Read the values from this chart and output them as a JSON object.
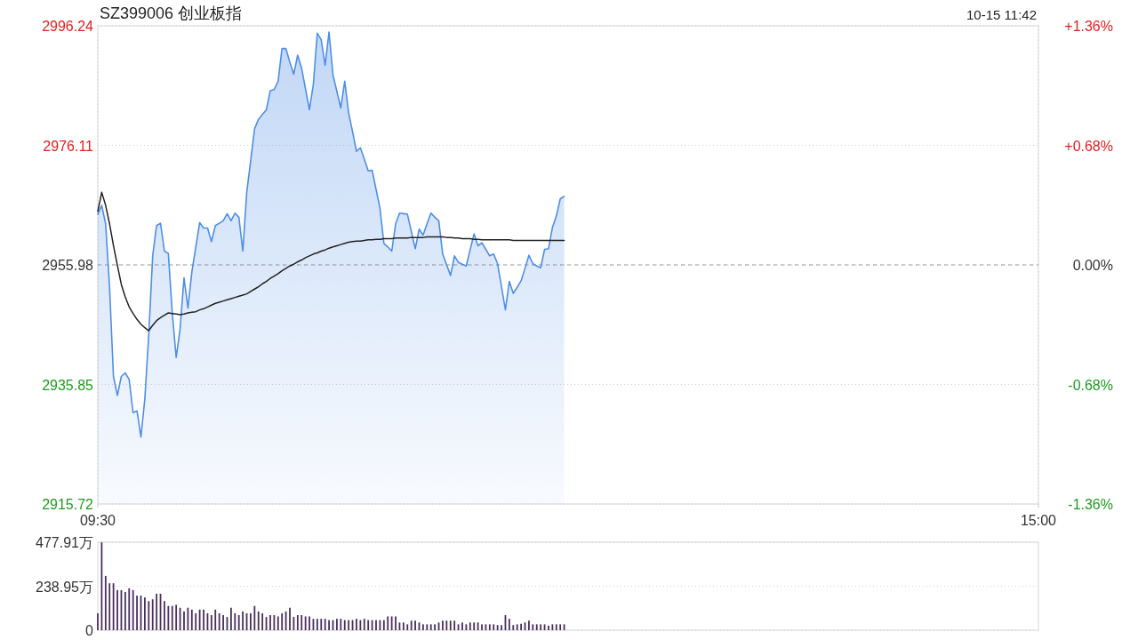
{
  "chart_data": [
    {
      "type": "area",
      "title": "SZ399006 创业板指",
      "subtitle": "10-15 11:42",
      "categories": [
        "09:30",
        null,
        null,
        null,
        null,
        null,
        null,
        null,
        null,
        null,
        null,
        null,
        null,
        null,
        null,
        null,
        null,
        null,
        null,
        null,
        null,
        null,
        null,
        null,
        null,
        null,
        null,
        null,
        null,
        null,
        null,
        null,
        null,
        null,
        null,
        null,
        null,
        null,
        null,
        null,
        null,
        null,
        null,
        null,
        null,
        null,
        null,
        null,
        null,
        null,
        null,
        null,
        null,
        null,
        null,
        null,
        null,
        null,
        null,
        null,
        null,
        null,
        null,
        null,
        null,
        null,
        null,
        null,
        null,
        null,
        null,
        null,
        null,
        null,
        null,
        null,
        null,
        null,
        null,
        null,
        null,
        null,
        null,
        null,
        null,
        null,
        null,
        null,
        null,
        null,
        null,
        null,
        null,
        null,
        null,
        null,
        null,
        null,
        null,
        null,
        null,
        null,
        null,
        null,
        null,
        null,
        null,
        null,
        null,
        null,
        null,
        null,
        null,
        null,
        null,
        null,
        null,
        null,
        null,
        null,
        null,
        null,
        null,
        null,
        null,
        null,
        null,
        null,
        null,
        null,
        null,
        null,
        null,
        null,
        null,
        null,
        null,
        null,
        null,
        null,
        null,
        null,
        null,
        null,
        null,
        null,
        null,
        null,
        null,
        null,
        null,
        null,
        null,
        null,
        null,
        null,
        null,
        null,
        null,
        null,
        null,
        null,
        null,
        null,
        null,
        null,
        null,
        null,
        null,
        null,
        null,
        null,
        null,
        null,
        null,
        null,
        null,
        null,
        null,
        null,
        null,
        null,
        null,
        null,
        null,
        null,
        null,
        null,
        null,
        null,
        null,
        null,
        null,
        null,
        null,
        null,
        null,
        null,
        null,
        null,
        null,
        null,
        null,
        null,
        null,
        null,
        null,
        null,
        null,
        null,
        null,
        null,
        null,
        null,
        null,
        null,
        null,
        null,
        null,
        null,
        null,
        null,
        null,
        null,
        null,
        null,
        null,
        null,
        null,
        null,
        null,
        null,
        null,
        null,
        null,
        null,
        null,
        null,
        null,
        null,
        "15:00"
      ],
      "ylim": [
        2915.72,
        2996.24
      ],
      "yticks": [
        2915.72,
        2935.85,
        2955.98,
        2976.11,
        2996.24
      ],
      "y2lim": [
        -1.36,
        1.36
      ],
      "y2ticks": [
        {
          "value": -1.36,
          "label": "-1.36%"
        },
        {
          "value": -0.68,
          "label": "-0.68%"
        },
        {
          "value": 0,
          "label": "0.00%"
        },
        {
          "value": 0.68,
          "label": "+0.68%"
        },
        {
          "value": 1.36,
          "label": "+1.36%"
        }
      ],
      "grid": true,
      "ref_lines": [
        {
          "axis": "y",
          "value": 2955.98,
          "color": "#999999",
          "line_style": "dashed"
        }
      ],
      "series": [
        {
          "type": "area",
          "color": "#4f8ee6",
          "values": [
            2964.5,
            2966.0,
            2962.9,
            2952.2,
            2937.2,
            2934.0,
            2937.2,
            2937.8,
            2936.7,
            2931.1,
            2931.4,
            2927.0,
            2933.4,
            2944.2,
            2957.5,
            2962.6,
            2963.0,
            2958.3,
            2957.9,
            2947.9,
            2940.4,
            2945.2,
            2953.8,
            2948.7,
            2954.8,
            2959.0,
            2963.1,
            2962.2,
            2962.2,
            2959.9,
            2962.6,
            2963.0,
            2963.4,
            2964.6,
            2963.4,
            2964.7,
            2964.0,
            2958.3,
            2968.2,
            2973.5,
            2978.9,
            2980.5,
            2981.3,
            2982.1,
            2985.3,
            2985.5,
            2986.9,
            2992.4,
            2992.4,
            2990.1,
            2988.1,
            2991.3,
            2989.1,
            2985.6,
            2982.1,
            2986.4,
            2995.0,
            2993.9,
            2989.6,
            2995.2,
            2988.0,
            2985.2,
            2982.4,
            2986.9,
            2981.6,
            2978.4,
            2975.1,
            2975.7,
            2973.8,
            2971.8,
            2971.9,
            2968.7,
            2965.5,
            2959.6,
            2959.0,
            2958.3,
            2962.9,
            2964.7,
            2964.6,
            2964.5,
            2961.6,
            2958.7,
            2962.0,
            2961.0,
            2962.9,
            2964.7,
            2964.0,
            2963.4,
            2957.8,
            2956.0,
            2954.2,
            2957.5,
            2956.4,
            2956.1,
            2955.8,
            2958.5,
            2961.2,
            2959.2,
            2959.7,
            2958.6,
            2957.5,
            2957.8,
            2956.2,
            2952.3,
            2948.4,
            2953.2,
            2951.2,
            2952.2,
            2953.3,
            2955.4,
            2957.6,
            2956.2,
            2955.8,
            2955.5,
            2958.6,
            2958.7,
            2962.3,
            2964.2,
            2967.1,
            2967.5,
            null,
            null,
            null,
            null,
            null,
            null,
            null,
            null,
            null,
            null,
            null,
            null,
            null,
            null,
            null,
            null,
            null,
            null,
            null,
            null,
            null,
            null,
            null,
            null,
            null,
            null,
            null,
            null,
            null,
            null,
            null,
            null,
            null,
            null,
            null,
            null,
            null,
            null,
            null,
            null,
            null,
            null,
            null,
            null,
            null,
            null,
            null,
            null,
            null,
            null,
            null,
            null,
            null,
            null,
            null,
            null,
            null,
            null,
            null,
            null,
            null,
            null,
            null,
            null,
            null,
            null,
            null,
            null,
            null,
            null,
            null,
            null,
            null,
            null,
            null,
            null,
            null,
            null,
            null,
            null,
            null,
            null,
            null,
            null,
            null,
            null,
            null,
            null,
            null,
            null,
            null,
            null,
            null,
            null,
            null,
            null,
            null,
            null,
            null,
            null,
            null,
            null,
            null,
            null,
            null,
            null,
            null,
            null,
            null,
            null,
            null,
            null,
            null,
            null,
            null,
            null,
            null,
            null,
            null,
            null,
            null
          ]
        },
        {
          "type": "line",
          "color": "#222222",
          "values": [
            2965.0,
            2968.2,
            2966.0,
            2962.9,
            2959.2,
            2955.9,
            2952.7,
            2950.6,
            2948.9,
            2947.8,
            2946.8,
            2946.0,
            2945.4,
            2944.9,
            2945.8,
            2946.6,
            2947.1,
            2947.5,
            2947.9,
            2947.8,
            2947.7,
            2947.6,
            2947.7,
            2947.9,
            2948.0,
            2948.1,
            2948.4,
            2948.6,
            2948.9,
            2949.2,
            2949.5,
            2949.7,
            2949.9,
            2950.1,
            2950.3,
            2950.5,
            2950.7,
            2950.9,
            2951.1,
            2951.5,
            2951.9,
            2952.3,
            2952.8,
            2953.2,
            2953.7,
            2954.1,
            2954.5,
            2955.0,
            2955.4,
            2955.8,
            2956.1,
            2956.5,
            2956.8,
            2957.2,
            2957.5,
            2957.8,
            2958.0,
            2958.3,
            2958.5,
            2958.8,
            2959.0,
            2959.2,
            2959.4,
            2959.6,
            2959.8,
            2959.9,
            2960.0,
            2960.0,
            2960.1,
            2960.2,
            2960.2,
            2960.3,
            2960.3,
            2960.4,
            2960.4,
            2960.4,
            2960.5,
            2960.5,
            2960.5,
            2960.5,
            2960.6,
            2960.6,
            2960.6,
            2960.6,
            2960.7,
            2960.7,
            2960.7,
            2960.7,
            2960.7,
            2960.6,
            2960.6,
            2960.5,
            2960.5,
            2960.4,
            2960.4,
            2960.4,
            2960.3,
            2960.3,
            2960.2,
            2960.2,
            2960.2,
            2960.2,
            2960.2,
            2960.2,
            2960.2,
            2960.2,
            2960.1,
            2960.1,
            2960.1,
            2960.1,
            2960.1,
            2960.1,
            2960.1,
            2960.1,
            2960.1,
            2960.1,
            2960.1,
            2960.1,
            2960.1,
            2960.1,
            null,
            null,
            null,
            null,
            null,
            null,
            null,
            null,
            null,
            null,
            null,
            null,
            null,
            null,
            null,
            null,
            null,
            null,
            null,
            null,
            null,
            null,
            null,
            null,
            null,
            null,
            null,
            null,
            null,
            null,
            null,
            null,
            null,
            null,
            null,
            null,
            null,
            null,
            null,
            null,
            null,
            null,
            null,
            null,
            null,
            null,
            null,
            null,
            null,
            null,
            null,
            null,
            null,
            null,
            null,
            null,
            null,
            null,
            null,
            null,
            null,
            null,
            null,
            null,
            null,
            null,
            null,
            null,
            null,
            null,
            null,
            null,
            null,
            null,
            null,
            null,
            null,
            null,
            null,
            null,
            null,
            null,
            null,
            null,
            null,
            null,
            null,
            null,
            null,
            null,
            null,
            null,
            null,
            null,
            null,
            null,
            null,
            null,
            null,
            null,
            null,
            null,
            null,
            null,
            null,
            null,
            null,
            null,
            null,
            null,
            null,
            null,
            null,
            null,
            null,
            null,
            null,
            null,
            null,
            null,
            null
          ]
        }
      ]
    },
    {
      "type": "bar",
      "color": "#4a2f5e",
      "tick_labels": "y",
      "grid": "y",
      "categories": [
        null,
        null,
        null,
        null,
        null,
        null,
        null,
        null,
        null,
        null,
        null,
        null,
        null,
        null,
        null,
        null,
        null,
        null,
        null,
        null,
        null,
        null,
        null,
        null,
        null,
        null,
        null,
        null,
        null,
        null,
        null,
        null,
        null,
        null,
        null,
        null,
        null,
        null,
        null,
        null,
        null,
        null,
        null,
        null,
        null,
        null,
        null,
        null,
        null,
        null,
        null,
        null,
        null,
        null,
        null,
        null,
        null,
        null,
        null,
        null,
        null,
        null,
        null,
        null,
        null,
        null,
        null,
        null,
        null,
        null,
        null,
        null,
        null,
        null,
        null,
        null,
        null,
        null,
        null,
        null,
        null,
        null,
        null,
        null,
        null,
        null,
        null,
        null,
        null,
        null,
        null,
        null,
        null,
        null,
        null,
        null,
        null,
        null,
        null,
        null,
        null,
        null,
        null,
        null,
        null,
        null,
        null,
        null,
        null,
        null,
        null,
        null,
        null,
        null,
        null,
        null,
        null,
        null,
        null,
        null,
        null,
        null,
        null,
        null,
        null,
        null,
        null,
        null,
        null,
        null,
        null,
        null,
        null,
        null,
        null,
        null,
        null,
        null,
        null,
        null,
        null,
        null,
        null,
        null,
        null,
        null,
        null,
        null,
        null,
        null,
        null,
        null,
        null,
        null,
        null,
        null,
        null,
        null,
        null,
        null,
        null,
        null,
        null,
        null,
        null,
        null,
        null,
        null,
        null,
        null,
        null,
        null,
        null,
        null,
        null,
        null,
        null,
        null,
        null,
        null,
        null,
        null,
        null,
        null,
        null,
        null,
        null,
        null,
        null,
        null,
        null,
        null,
        null,
        null,
        null,
        null,
        null,
        null,
        null,
        null,
        null,
        null,
        null,
        null,
        null,
        null,
        null,
        null,
        null,
        null,
        null,
        null,
        null,
        null,
        null,
        null,
        null,
        null,
        null,
        null,
        null,
        null,
        null,
        null,
        null,
        null,
        null,
        null,
        null,
        null,
        null,
        null,
        null,
        null,
        null,
        null,
        null,
        null,
        null,
        null,
        null
      ],
      "ylim": [
        0,
        477.91
      ],
      "yticks": [
        0,
        {
          "value": 238.95,
          "label": "238.95万"
        },
        {
          "value": 477.91,
          "label": "477.91万"
        }
      ],
      "values": [
        92,
        477,
        295,
        255,
        255,
        218,
        218,
        208,
        228,
        218,
        188,
        188,
        178,
        158,
        168,
        198,
        198,
        158,
        132,
        132,
        138,
        122,
        102,
        122,
        112,
        92,
        112,
        112,
        92,
        82,
        112,
        92,
        82,
        72,
        122,
        92,
        82,
        102,
        92,
        92,
        132,
        102,
        92,
        72,
        82,
        82,
        75,
        92,
        102,
        122,
        72,
        82,
        82,
        75,
        75,
        62,
        62,
        62,
        62,
        55,
        55,
        62,
        62,
        55,
        55,
        55,
        62,
        55,
        62,
        55,
        55,
        55,
        55,
        55,
        75,
        75,
        75,
        42,
        42,
        32,
        52,
        52,
        42,
        32,
        32,
        32,
        32,
        42,
        52,
        52,
        52,
        52,
        32,
        42,
        32,
        42,
        42,
        42,
        32,
        32,
        32,
        32,
        28,
        28,
        82,
        62,
        28,
        32,
        35,
        42,
        52,
        32,
        32,
        32,
        32,
        25,
        32,
        32,
        32,
        32,
        null,
        null,
        null,
        null,
        null,
        null,
        null,
        null,
        null,
        null,
        null,
        null,
        null,
        null,
        null,
        null,
        null,
        null,
        null,
        null,
        null,
        null,
        null,
        null,
        null,
        null,
        null,
        null,
        null,
        null,
        null,
        null,
        null,
        null,
        null,
        null,
        null,
        null,
        null,
        null,
        null,
        null,
        null,
        null,
        null,
        null,
        null,
        null,
        null,
        null,
        null,
        null,
        null,
        null,
        null,
        null,
        null,
        null,
        null,
        null,
        null,
        null,
        null,
        null,
        null,
        null,
        null,
        null,
        null,
        null,
        null,
        null,
        null,
        null,
        null,
        null,
        null,
        null,
        null,
        null,
        null,
        null,
        null,
        null,
        null,
        null,
        null,
        null,
        null,
        null,
        null,
        null,
        null,
        null,
        null,
        null,
        null,
        null,
        null,
        null,
        null,
        null,
        null,
        null,
        null,
        null,
        null,
        null,
        null,
        null,
        null,
        null,
        null,
        null,
        null,
        null,
        null,
        null,
        null,
        null,
        null
      ]
    }
  ]
}
